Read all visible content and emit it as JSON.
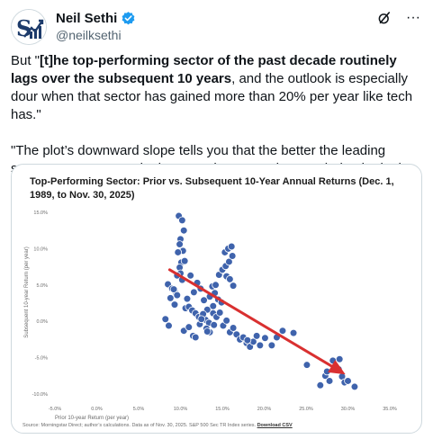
{
  "author": {
    "name": "Neil Sethi",
    "handle": "@neilksethi",
    "avatar_icon": "logo-icon",
    "verified_color": "#1d9bf0"
  },
  "actions": {
    "grok_icon": "slash-icon",
    "more_icon": "more-icon",
    "more_label": "···"
  },
  "tweet": {
    "p1_a": "But \"",
    "p1_b": "[t]he top-performing sector of the past decade routinely lags over the subsequent 10 years",
    "p1_c": ", and the outlook is especially dour when that sector has gained more than 20% per year like tech has.\"",
    "p2": "\"The plot’s downward slope tells you that the better the leading sector’s returns were in the past, the worse they tended to be in the future.\""
  },
  "chart_data": {
    "type": "scatter",
    "title": "Top-Performing Sector: Prior vs. Subsequent 10-Year Annual Returns (Dec. 1, 1989, to Nov. 30, 2025)",
    "xlabel": "Prior 10-year Return (per year)",
    "ylabel": "Subsequent 10-year Return (per year)",
    "xlim": [
      -5,
      35
    ],
    "ylim": [
      -10,
      15
    ],
    "x_ticks": [
      "-5.0%",
      "0.0%",
      "5.0%",
      "10.0%",
      "15.0%",
      "20.0%",
      "25.0%",
      "30.0%",
      "35.0%"
    ],
    "y_ticks": [
      "15.0%",
      "10.0%",
      "5.0%",
      "0.0%",
      "-5.0%",
      "-10.0%"
    ],
    "grid": false,
    "point_color": "#3f63ac",
    "trend_color": "#d93030",
    "trend": {
      "x": [
        8.7,
        29.7
      ],
      "y": [
        7.1,
        -7.3
      ]
    },
    "points": {
      "x": [
        9.8,
        10.2,
        10.0,
        10.4,
        9.9,
        10.3,
        9.7,
        10.1,
        10.5,
        9.9,
        10.0,
        9.6,
        10.2,
        8.5,
        9.0,
        9.5,
        8.8,
        9.3,
        10.6,
        11.0,
        11.4,
        11.8,
        12.2,
        12.6,
        13.0,
        13.4,
        13.8,
        14.2,
        14.6,
        15.0,
        15.4,
        15.8,
        16.2,
        15.3,
        15.7,
        16.1,
        15.5,
        15.9,
        16.3,
        14.1,
        14.5,
        14.9,
        13.5,
        13.9,
        12.8,
        13.2,
        12.4,
        11.6,
        12.0,
        10.8,
        11.2,
        9.2,
        9.6,
        8.2,
        8.6,
        10.4,
        11.0,
        11.5,
        12.3,
        12.7,
        13.1,
        13.5,
        13.9,
        14.3,
        14.7,
        15.1,
        15.5,
        15.9,
        16.3,
        16.7,
        17.1,
        17.5,
        17.9,
        18.3,
        18.7,
        19.1,
        19.5,
        20.1,
        20.9,
        21.5,
        22.2,
        23.5,
        25.1,
        26.7,
        27.3,
        27.8,
        28.2,
        28.6,
        29.0,
        29.3,
        29.6,
        30.0,
        30.8,
        27.5,
        28.9,
        18.0,
        14.0,
        13.2,
        11.8,
        12.5
      ],
      "y": [
        14.5,
        13.9,
        11.3,
        12.5,
        10.6,
        9.7,
        9.5,
        8.1,
        8.3,
        7.4,
        6.6,
        6.3,
        5.7,
        5.1,
        4.5,
        3.8,
        3.2,
        2.3,
        1.8,
        2.0,
        1.5,
        1.1,
        0.6,
        0.5,
        0.2,
        -0.2,
        4.8,
        5.0,
        6.4,
        7.1,
        7.6,
        8.2,
        9.0,
        9.5,
        10.0,
        10.3,
        6.2,
        5.8,
        4.9,
        3.9,
        3.0,
        2.6,
        3.4,
        2.1,
        2.9,
        1.6,
        4.5,
        4.0,
        5.3,
        3.1,
        6.3,
        4.4,
        3.6,
        0.3,
        -0.6,
        -1.3,
        -0.8,
        -2.0,
        -0.4,
        1.0,
        -1.0,
        -1.5,
        1.1,
        0.6,
        1.2,
        -0.6,
        0.1,
        -1.5,
        -0.9,
        -1.8,
        -2.5,
        -2.2,
        -3.0,
        -3.5,
        -2.8,
        -2.0,
        -3.3,
        -2.3,
        -3.3,
        -2.2,
        -1.3,
        -1.6,
        -6.0,
        -8.8,
        -7.5,
        -8.2,
        -5.4,
        -6.5,
        -5.2,
        -7.6,
        -8.4,
        -8.2,
        -9.0,
        -6.9,
        -6.6,
        -2.6,
        -0.5,
        -1.4,
        -2.2,
        0.3
      ]
    }
  },
  "source": {
    "text": "Source: Morningstar Direct; author’s calculations. Data as of Nov. 30, 2025. S&P 500 Sec TR Index series.",
    "link": "Download CSV"
  }
}
